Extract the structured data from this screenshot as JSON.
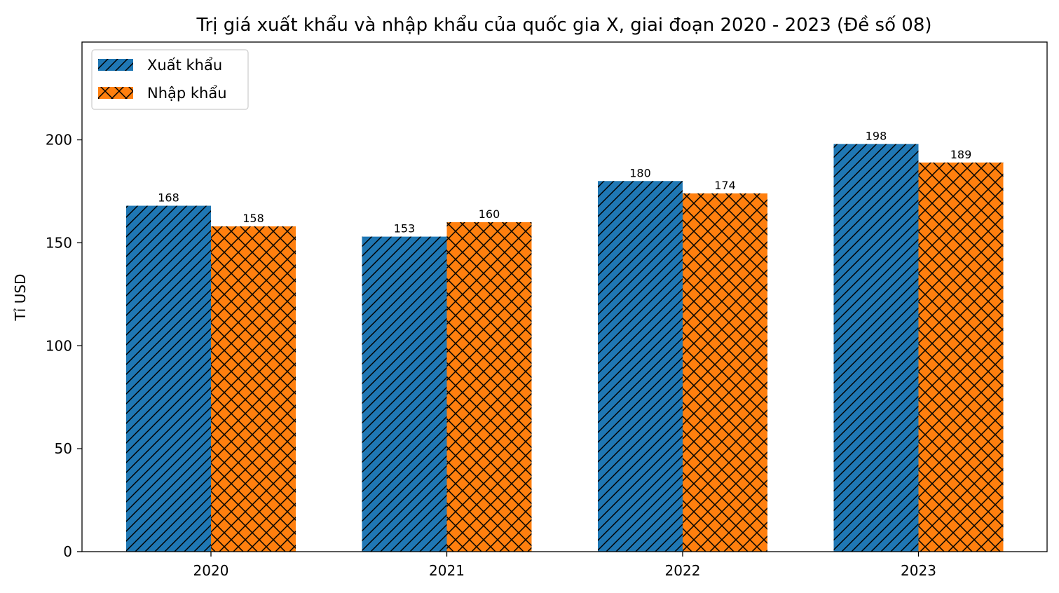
{
  "chart_data": {
    "type": "bar",
    "title": "Trị giá xuất khẩu và nhập khẩu của quốc gia X, giai đoạn 2020 - 2023 (Đề số 08)",
    "xlabel": "",
    "ylabel": "Tỉ USD",
    "categories": [
      "2020",
      "2021",
      "2022",
      "2023"
    ],
    "series": [
      {
        "name": "Xuất khẩu",
        "values": [
          168,
          153,
          180,
          198
        ],
        "color": "#1f77b4",
        "hatch": "diagonal"
      },
      {
        "name": "Nhập khẩu",
        "values": [
          158,
          160,
          174,
          189
        ],
        "color": "#ff7f0e",
        "hatch": "cross"
      }
    ],
    "ylim": [
      0,
      247.5
    ],
    "yticks": [
      0,
      50,
      100,
      150,
      200
    ],
    "grid": false,
    "legend": "top-left",
    "data_labels": true
  }
}
